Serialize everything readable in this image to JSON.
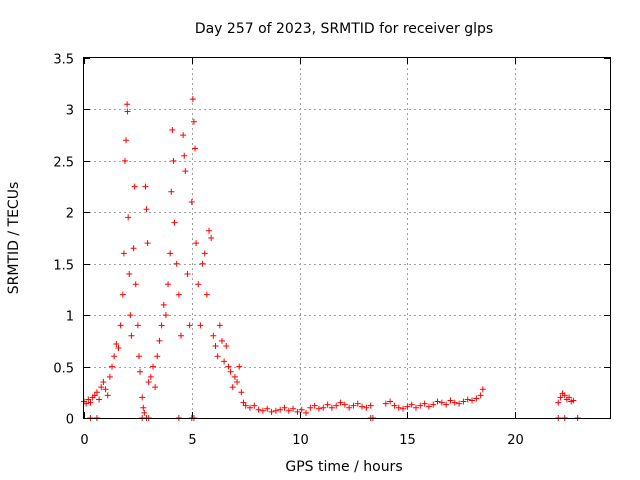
{
  "chart_data": {
    "type": "scatter",
    "title": "Day 257 of 2023, SRMTID for receiver glps",
    "xlabel": "GPS time / hours",
    "ylabel": "SRMTID / TECUs",
    "xlim": [
      0,
      24.4
    ],
    "ylim": [
      0,
      3.5
    ],
    "xticks": [
      0,
      5,
      10,
      15,
      20
    ],
    "xtick_labels": [
      "0",
      "5",
      "10",
      "15",
      "20"
    ],
    "yticks": [
      0,
      0.5,
      1,
      1.5,
      2,
      2.5,
      3,
      3.5
    ],
    "ytick_labels": [
      "0",
      "0.5",
      "1",
      "1.5",
      "2",
      "2.5",
      "3",
      "3.5"
    ],
    "grid": true,
    "marker": "+",
    "series_color": "#ff0000",
    "series": [
      {
        "name": "SRMTID",
        "points": [
          [
            0.0,
            0.16
          ],
          [
            0.1,
            0.14
          ],
          [
            0.2,
            0.18
          ],
          [
            0.3,
            0.15
          ],
          [
            0.4,
            0.2
          ],
          [
            0.5,
            0.22
          ],
          [
            0.6,
            0.25
          ],
          [
            0.7,
            0.18
          ],
          [
            0.8,
            0.3
          ],
          [
            0.9,
            0.35
          ],
          [
            1.0,
            0.28
          ],
          [
            1.1,
            0.22
          ],
          [
            1.2,
            0.4
          ],
          [
            1.3,
            0.5
          ],
          [
            1.4,
            0.6
          ],
          [
            1.5,
            0.72
          ],
          [
            1.6,
            0.68
          ],
          [
            1.7,
            0.9
          ],
          [
            1.8,
            1.2
          ],
          [
            1.85,
            1.6
          ],
          [
            1.9,
            2.5
          ],
          [
            1.95,
            2.7
          ],
          [
            2.0,
            3.05
          ],
          [
            2.02,
            2.98
          ],
          [
            2.05,
            1.95
          ],
          [
            2.1,
            1.4
          ],
          [
            2.15,
            1.0
          ],
          [
            2.2,
            0.8
          ],
          [
            2.3,
            1.65
          ],
          [
            2.35,
            2.25
          ],
          [
            2.4,
            1.3
          ],
          [
            2.5,
            0.9
          ],
          [
            2.55,
            0.6
          ],
          [
            2.6,
            0.45
          ],
          [
            2.7,
            0.2
          ],
          [
            2.75,
            0.1
          ],
          [
            2.8,
            0.05
          ],
          [
            2.85,
            2.25
          ],
          [
            2.9,
            2.03
          ],
          [
            2.95,
            1.7
          ],
          [
            3.0,
            0.35
          ],
          [
            3.1,
            0.4
          ],
          [
            3.2,
            0.5
          ],
          [
            3.3,
            0.3
          ],
          [
            3.4,
            0.6
          ],
          [
            3.5,
            0.75
          ],
          [
            3.6,
            0.9
          ],
          [
            3.7,
            1.1
          ],
          [
            3.8,
            1.0
          ],
          [
            3.9,
            1.3
          ],
          [
            4.0,
            1.6
          ],
          [
            4.05,
            2.2
          ],
          [
            4.1,
            2.8
          ],
          [
            4.15,
            2.5
          ],
          [
            4.2,
            1.9
          ],
          [
            4.3,
            1.5
          ],
          [
            4.4,
            1.2
          ],
          [
            4.5,
            0.8
          ],
          [
            4.6,
            2.75
          ],
          [
            4.65,
            2.55
          ],
          [
            4.7,
            2.4
          ],
          [
            4.8,
            1.4
          ],
          [
            4.9,
            0.9
          ],
          [
            5.0,
            2.1
          ],
          [
            5.05,
            3.1
          ],
          [
            5.1,
            2.88
          ],
          [
            5.15,
            2.62
          ],
          [
            5.2,
            1.7
          ],
          [
            5.3,
            1.3
          ],
          [
            5.4,
            0.9
          ],
          [
            5.5,
            1.5
          ],
          [
            5.6,
            1.6
          ],
          [
            5.7,
            1.2
          ],
          [
            5.8,
            1.82
          ],
          [
            5.9,
            1.75
          ],
          [
            6.0,
            0.8
          ],
          [
            6.1,
            0.7
          ],
          [
            6.2,
            0.6
          ],
          [
            6.3,
            0.9
          ],
          [
            6.4,
            0.75
          ],
          [
            6.5,
            0.55
          ],
          [
            6.6,
            0.7
          ],
          [
            6.7,
            0.5
          ],
          [
            6.8,
            0.45
          ],
          [
            6.9,
            0.3
          ],
          [
            7.0,
            0.4
          ],
          [
            7.1,
            0.35
          ],
          [
            7.2,
            0.5
          ],
          [
            7.3,
            0.25
          ],
          [
            7.4,
            0.15
          ],
          [
            7.5,
            0.12
          ],
          [
            7.7,
            0.1
          ],
          [
            7.9,
            0.12
          ],
          [
            8.1,
            0.08
          ],
          [
            8.3,
            0.07
          ],
          [
            8.5,
            0.09
          ],
          [
            8.7,
            0.06
          ],
          [
            8.9,
            0.07
          ],
          [
            9.1,
            0.08
          ],
          [
            9.3,
            0.1
          ],
          [
            9.5,
            0.07
          ],
          [
            9.7,
            0.09
          ],
          [
            9.9,
            0.06
          ],
          [
            10.1,
            0.08
          ],
          [
            10.3,
            0.05
          ],
          [
            10.5,
            0.1
          ],
          [
            10.7,
            0.12
          ],
          [
            10.9,
            0.09
          ],
          [
            11.1,
            0.1
          ],
          [
            11.3,
            0.13
          ],
          [
            11.5,
            0.1
          ],
          [
            11.7,
            0.12
          ],
          [
            11.9,
            0.15
          ],
          [
            12.1,
            0.13
          ],
          [
            12.3,
            0.1
          ],
          [
            12.5,
            0.12
          ],
          [
            12.7,
            0.14
          ],
          [
            12.9,
            0.11
          ],
          [
            13.1,
            0.1
          ],
          [
            13.3,
            0.12
          ],
          [
            14.0,
            0.14
          ],
          [
            14.2,
            0.16
          ],
          [
            14.4,
            0.12
          ],
          [
            14.6,
            0.1
          ],
          [
            14.8,
            0.09
          ],
          [
            15.0,
            0.11
          ],
          [
            15.2,
            0.13
          ],
          [
            15.4,
            0.1
          ],
          [
            15.6,
            0.12
          ],
          [
            15.8,
            0.14
          ],
          [
            16.0,
            0.11
          ],
          [
            16.2,
            0.13
          ],
          [
            16.4,
            0.16
          ],
          [
            16.6,
            0.15
          ],
          [
            16.8,
            0.13
          ],
          [
            17.0,
            0.17
          ],
          [
            17.2,
            0.15
          ],
          [
            17.4,
            0.14
          ],
          [
            17.6,
            0.16
          ],
          [
            17.8,
            0.18
          ],
          [
            18.0,
            0.17
          ],
          [
            18.2,
            0.19
          ],
          [
            18.4,
            0.22
          ],
          [
            18.5,
            0.28
          ],
          [
            22.0,
            0.15
          ],
          [
            22.1,
            0.2
          ],
          [
            22.2,
            0.24
          ],
          [
            22.3,
            0.22
          ],
          [
            22.4,
            0.18
          ],
          [
            22.5,
            0.2
          ],
          [
            22.6,
            0.16
          ],
          [
            22.7,
            0.17
          ],
          [
            0.3,
            0.0
          ],
          [
            0.6,
            0.0
          ],
          [
            2.7,
            0.0
          ],
          [
            2.9,
            0.0
          ],
          [
            3.0,
            0.0
          ],
          [
            4.4,
            0.0
          ],
          [
            5.0,
            0.0
          ],
          [
            5.1,
            0.0
          ],
          [
            13.3,
            0.0
          ],
          [
            13.4,
            0.0
          ],
          [
            22.0,
            0.0
          ],
          [
            22.3,
            0.0
          ],
          [
            22.9,
            0.0
          ]
        ]
      }
    ]
  }
}
